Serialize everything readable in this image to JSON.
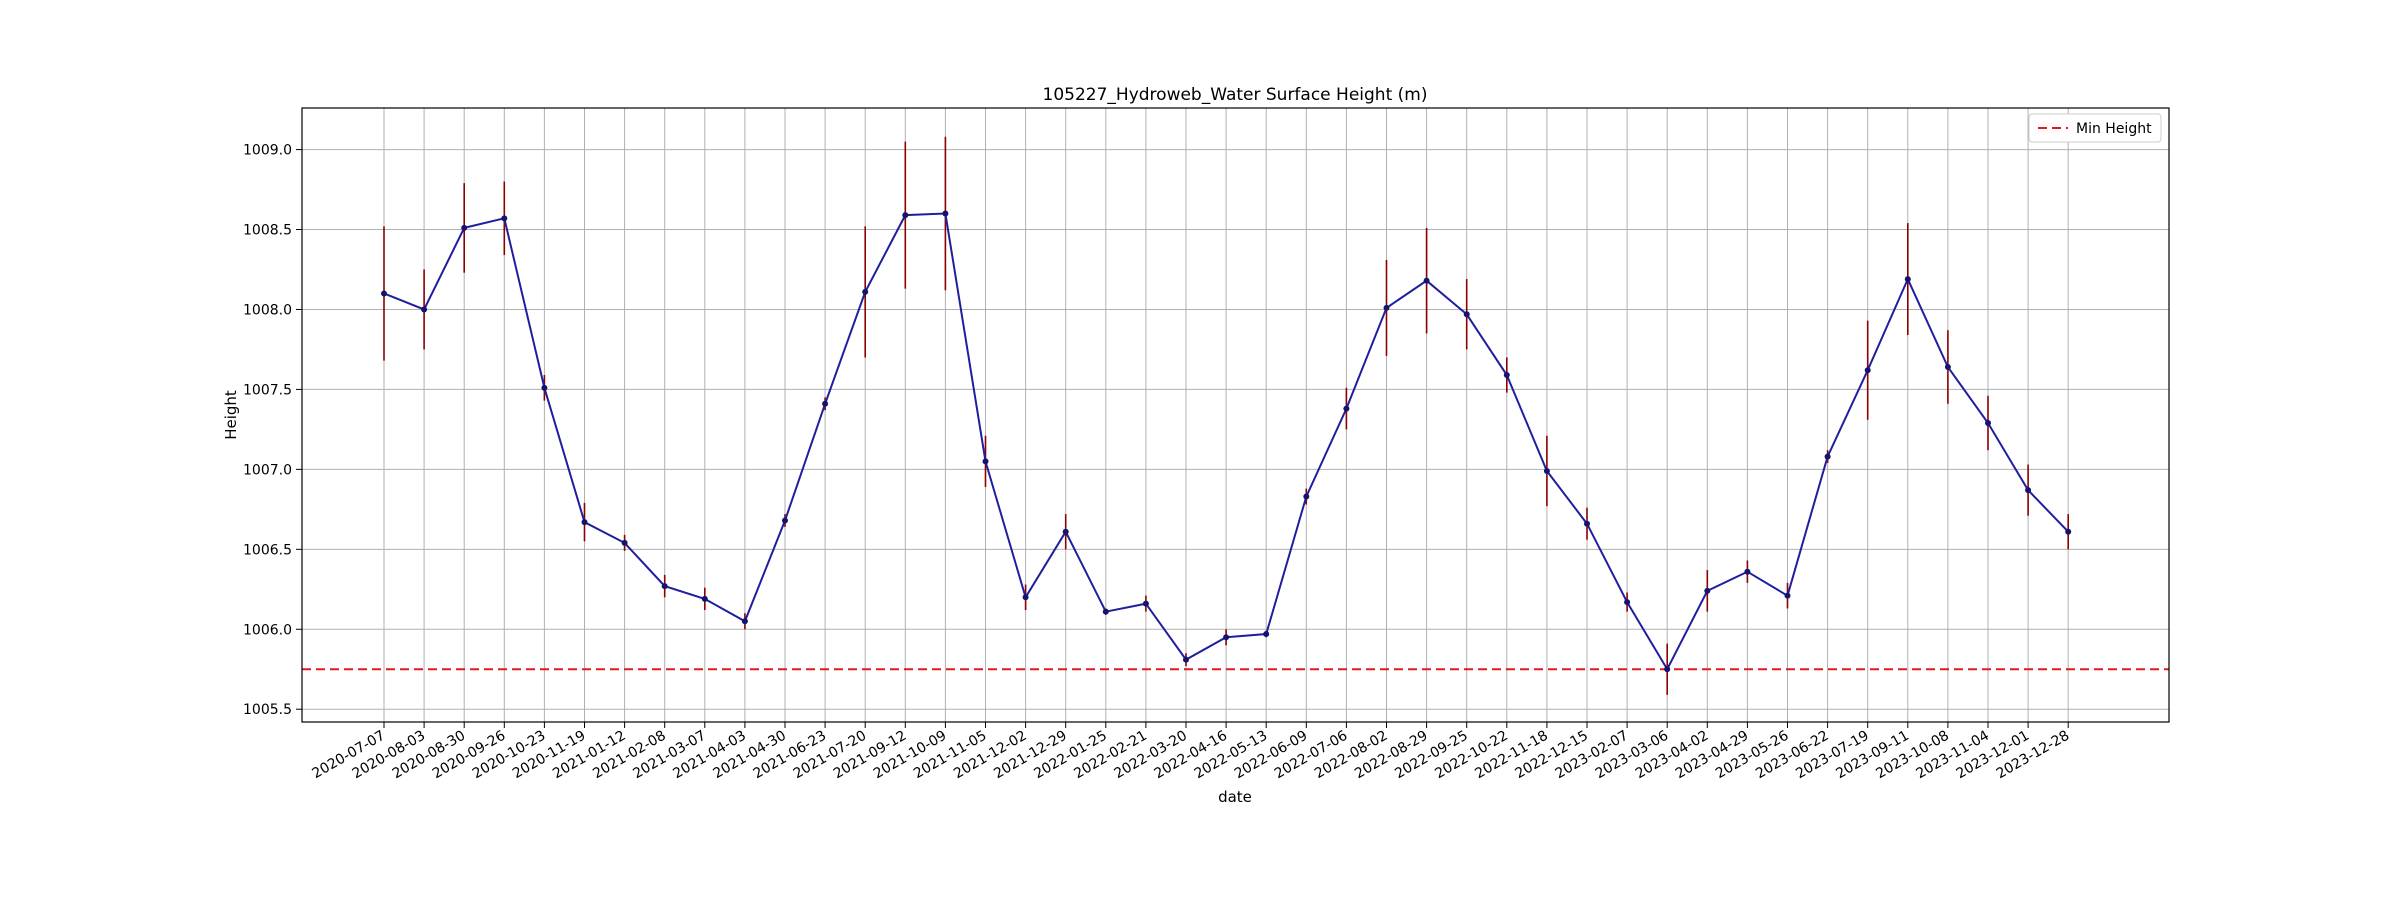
{
  "chart_data": {
    "type": "line",
    "title": "105227_Hydroweb_Water Surface Height (m)",
    "xlabel": "date",
    "ylabel": "Height",
    "ylim": [
      1005.42,
      1009.26
    ],
    "yticks": [
      1005.5,
      1006.0,
      1006.5,
      1007.0,
      1007.5,
      1008.0,
      1008.5,
      1009.0
    ],
    "grid": true,
    "legend_position": "top-right",
    "categories": [
      "2020-07-07",
      "2020-08-03",
      "2020-08-30",
      "2020-09-26",
      "2020-10-23",
      "2020-11-19",
      "2021-01-12",
      "2021-02-08",
      "2021-03-07",
      "2021-04-03",
      "2021-04-30",
      "2021-06-23",
      "2021-07-20",
      "2021-09-12",
      "2021-10-09",
      "2021-11-05",
      "2021-12-02",
      "2021-12-29",
      "2022-01-25",
      "2022-02-21",
      "2022-03-20",
      "2022-04-16",
      "2022-05-13",
      "2022-06-09",
      "2022-07-06",
      "2022-08-02",
      "2022-08-29",
      "2022-09-25",
      "2022-10-22",
      "2022-11-18",
      "2022-12-15",
      "2023-02-07",
      "2023-03-06",
      "2023-04-02",
      "2023-04-29",
      "2023-05-26",
      "2023-06-22",
      "2023-07-19",
      "2023-09-11",
      "2023-10-08",
      "2023-11-04",
      "2023-12-01",
      "2023-12-28"
    ],
    "series": [
      {
        "values": [
          1008.1,
          1008.0,
          1008.51,
          1008.57,
          1007.51,
          1006.67,
          1006.54,
          1006.27,
          1006.19,
          1006.05,
          1006.68,
          1007.41,
          1008.11,
          1008.59,
          1008.6,
          1007.05,
          1006.2,
          1006.61,
          1006.11,
          1006.16,
          1005.81,
          1005.95,
          1005.97,
          1006.83,
          1007.38,
          1008.01,
          1008.18,
          1007.97,
          1007.59,
          1006.99,
          1006.66,
          1006.17,
          1005.75,
          1006.24,
          1006.36,
          1006.21,
          1007.08,
          1007.62,
          1008.19,
          1007.64,
          1007.29,
          1006.87,
          1006.61
        ],
        "errors": [
          0.42,
          0.25,
          0.28,
          0.23,
          0.08,
          0.12,
          0.05,
          0.07,
          0.07,
          0.05,
          0.04,
          0.04,
          0.41,
          0.46,
          0.48,
          0.16,
          0.08,
          0.11,
          0.02,
          0.05,
          0.04,
          0.05,
          0.02,
          0.05,
          0.13,
          0.3,
          0.33,
          0.22,
          0.11,
          0.22,
          0.1,
          0.06,
          0.16,
          0.13,
          0.07,
          0.08,
          0.04,
          0.31,
          0.35,
          0.23,
          0.17,
          0.16,
          0.11
        ],
        "color": "#1f1f9e",
        "error_color": "#8b0000"
      }
    ],
    "reference_line": {
      "label": "Min Height",
      "value": 1005.75,
      "color": "#e31a1c",
      "style": "dashed"
    }
  }
}
